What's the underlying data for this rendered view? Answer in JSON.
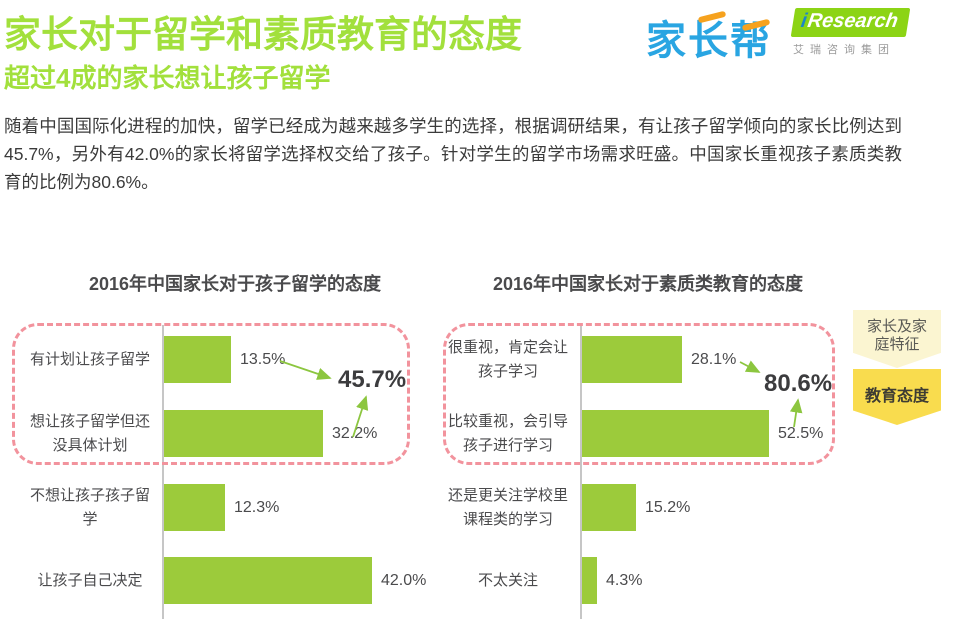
{
  "page": {
    "title": "家长对于留学和素质教育的态度",
    "subtitle": "超过4成的家长想让孩子留学",
    "paragraph": "随着中国国际化进程的加快，留学已经成为越来越多学生的选择，根据调研结果，有让孩子留学倾向的家长比例达到45.7%，另外有42.0%的家长将留学选择权交给了孩子。针对学生的留学市场需求旺盛。中国家长重视孩子素质类教育的比例为80.6%。"
  },
  "logos": {
    "jiazhangbang": "家长帮",
    "iresearch_i": "i",
    "iresearch_rest": "Research",
    "iresearch_sub": "艾瑞咨询集团"
  },
  "colors": {
    "title_green": "#A2E03C",
    "bar_green": "#9CCB3B",
    "arrow_green": "#8CC63F",
    "dashed_pink": "#F2939D",
    "tag_light_bg": "#FBF5D1",
    "tag_dark_bg": "#F9DC4E",
    "text_dark": "#4A4A4C"
  },
  "chart_data": [
    {
      "type": "bar",
      "orientation": "horizontal",
      "title": "2016年中国家长对于孩子留学的态度",
      "categories": [
        "有计划让孩子留学",
        "想让孩子留学但还没具体计划",
        "不想让孩子孩子留学",
        "让孩子自己决定"
      ],
      "values": [
        13.5,
        32.2,
        12.3,
        42.0
      ],
      "value_labels": [
        "13.5%",
        "32.2%",
        "12.3%",
        "42.0%"
      ],
      "xlim": [
        0,
        45
      ],
      "grid": false,
      "highlighted_rows": [
        0,
        1
      ],
      "callout": {
        "label": "45.7%",
        "meaning": "sum of first two categories"
      }
    },
    {
      "type": "bar",
      "orientation": "horizontal",
      "title": "2016年中国家长对于素质类教育的态度",
      "categories": [
        "很重视，肯定会让孩子学习",
        "比较重视，会引导孩子进行学习",
        "还是更关注学校里课程类的学习",
        "不太关注"
      ],
      "values": [
        28.1,
        52.5,
        15.2,
        4.3
      ],
      "value_labels": [
        "28.1%",
        "52.5%",
        "15.2%",
        "4.3%"
      ],
      "xlim": [
        0,
        60
      ],
      "grid": false,
      "highlighted_rows": [
        0,
        1
      ],
      "callout": {
        "label": "80.6%",
        "meaning": "sum of first two categories"
      }
    }
  ],
  "tags": [
    {
      "label": "家长及家庭特征"
    },
    {
      "label": "教育态度"
    }
  ]
}
